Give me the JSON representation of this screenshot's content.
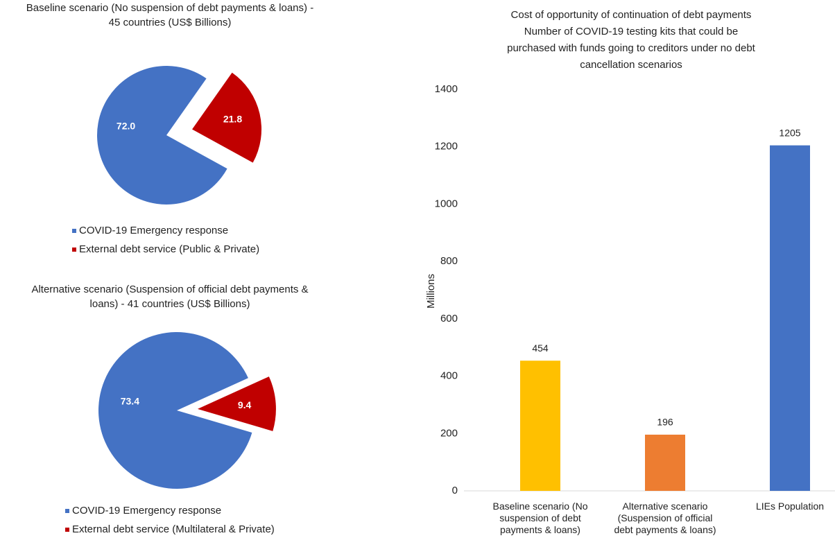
{
  "chart_data": [
    {
      "type": "pie",
      "title": [
        "Baseline scenario (No suspension of debt payments & loans) -",
        "45 countries (US$ Billions)"
      ],
      "categories": [
        "COVID-19 Emergency response",
        "External debt service (Public & Private)"
      ],
      "values": [
        72.0,
        21.8
      ],
      "value_labels": [
        "72.0",
        "21.8"
      ],
      "colors": [
        "#4472c4",
        "#c00000"
      ]
    },
    {
      "type": "pie",
      "title": [
        "Alternative scenario (Suspension of official debt payments &",
        "loans) - 41 countries (US$ Billions)"
      ],
      "categories": [
        "COVID-19 Emergency response",
        "External debt service (Multilateral & Private)"
      ],
      "values": [
        73.4,
        9.4
      ],
      "value_labels": [
        "73.4",
        "9.4"
      ],
      "colors": [
        "#4472c4",
        "#c00000"
      ]
    },
    {
      "type": "bar",
      "title": [
        "Cost of opportunity of continuation of debt payments",
        "Number of COVID-19 testing kits that could be",
        "purchased with funds going to creditors under no debt",
        "cancellation scenarios"
      ],
      "y_label": "Millions",
      "categories": [
        "Baseline scenario (No suspension of debt payments & loans)",
        "Alternative scenario (Suspension of official debt payments & loans)",
        "LIEs Population"
      ],
      "values": [
        454,
        196,
        1205
      ],
      "colors": [
        "#ffc000",
        "#ed7d31",
        "#4472c4"
      ],
      "ylim": [
        0,
        1400
      ],
      "yticks": [
        0,
        200,
        400,
        600,
        800,
        1000,
        1200,
        1400
      ],
      "grid": false
    }
  ]
}
